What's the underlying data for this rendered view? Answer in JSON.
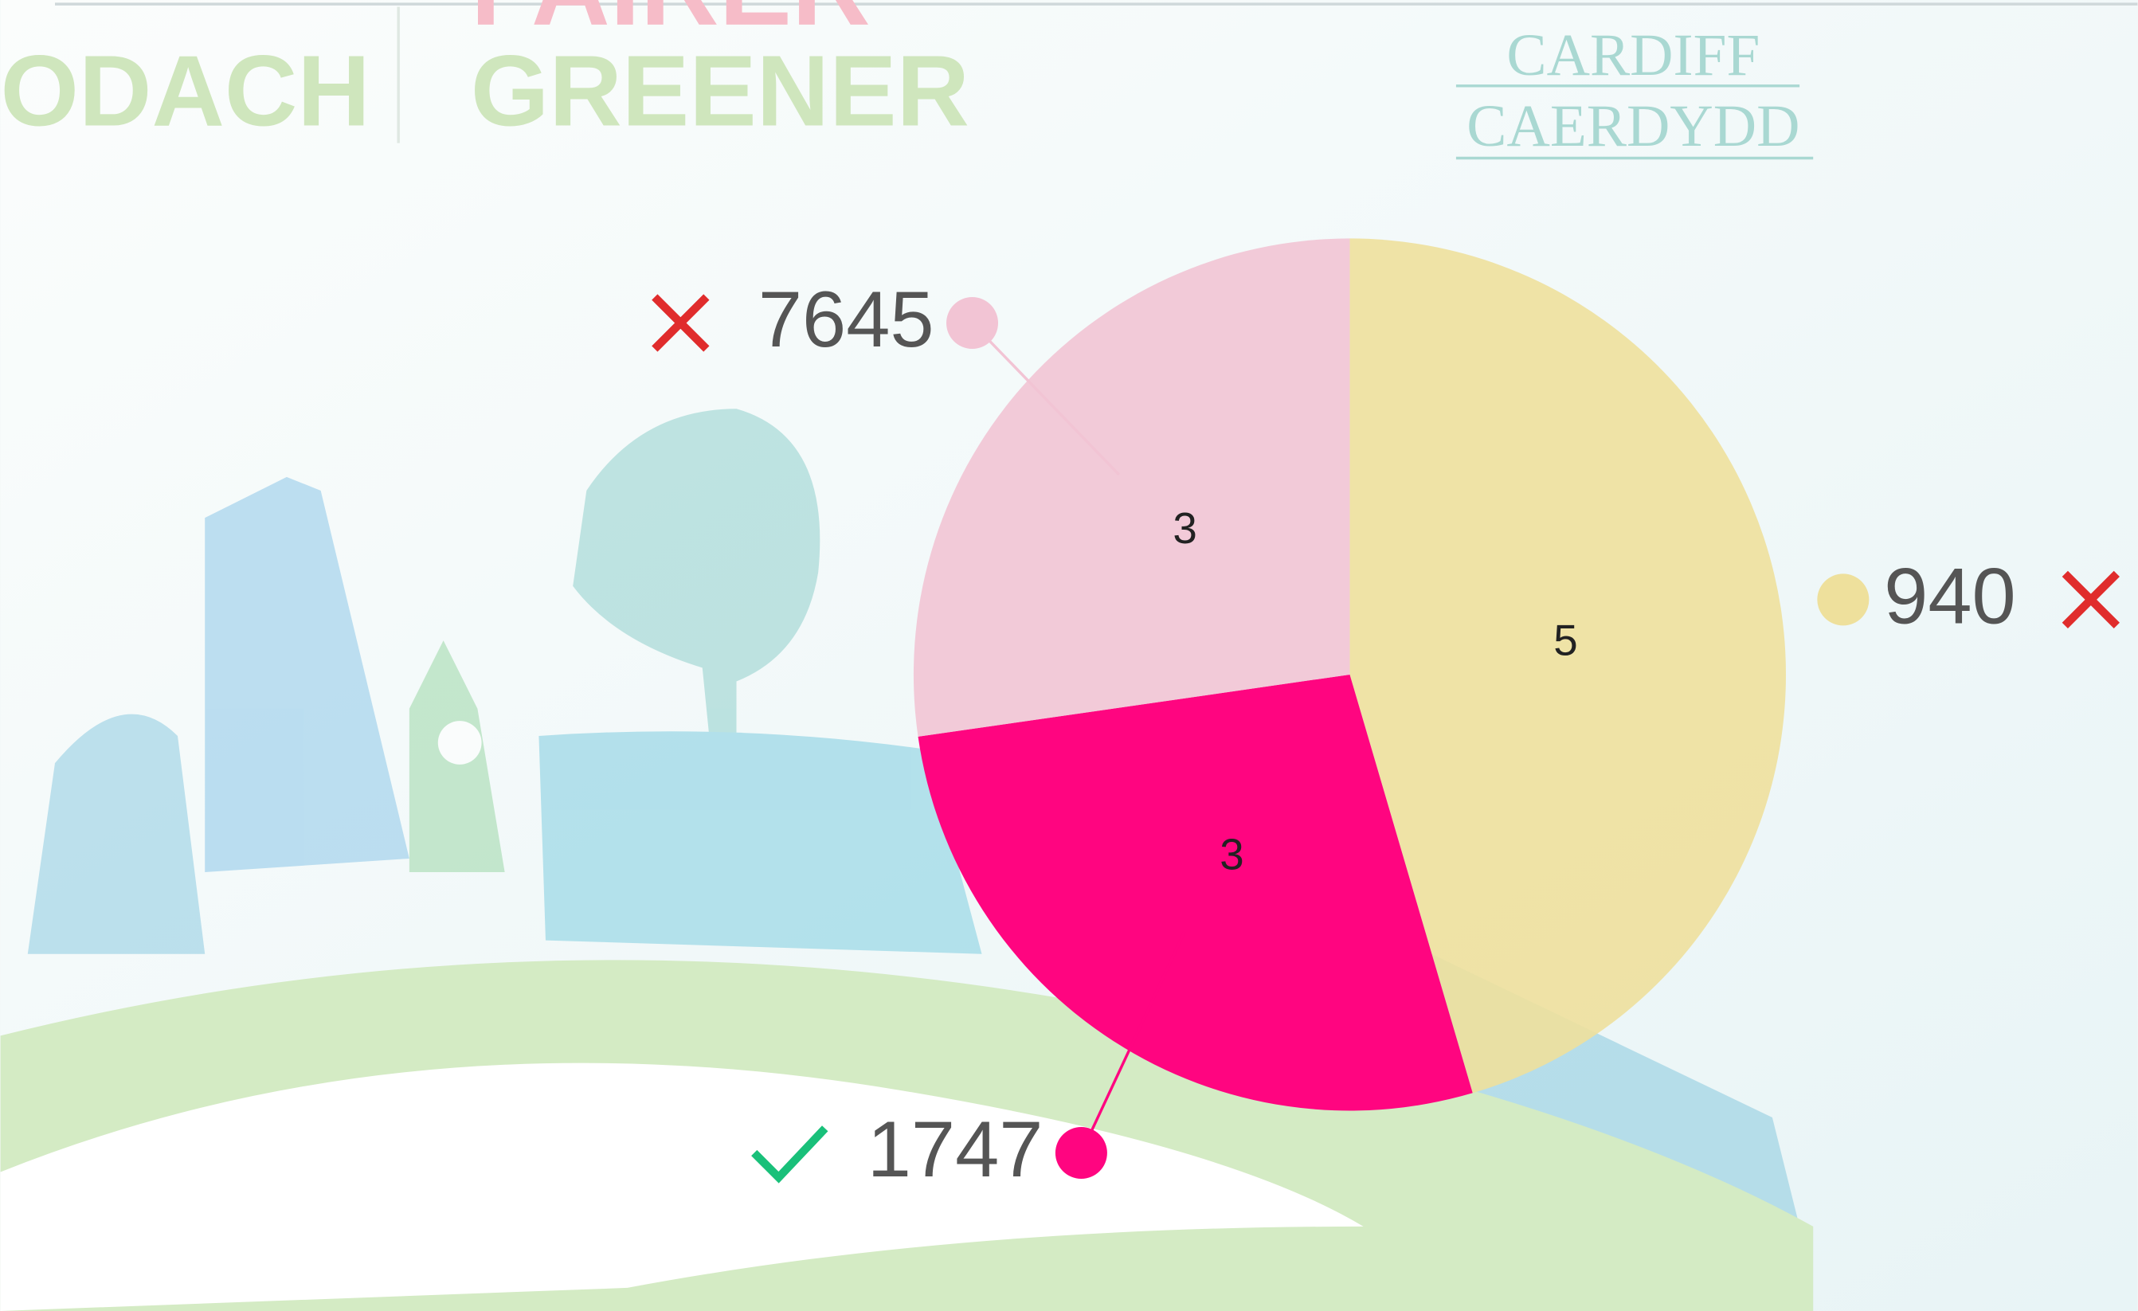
{
  "background": {
    "texts": [
      "FAIRER",
      "ODACH",
      "GREENER",
      "CARDIFF",
      "CAERDYDD"
    ]
  },
  "chart_data": {
    "type": "pie",
    "categories": [
      "940",
      "1747",
      "7645"
    ],
    "values": [
      5,
      3,
      3
    ],
    "colors": [
      "#eee09c",
      "#ff0580",
      "#f2c4d4"
    ],
    "correct": [
      false,
      true,
      false
    ]
  }
}
